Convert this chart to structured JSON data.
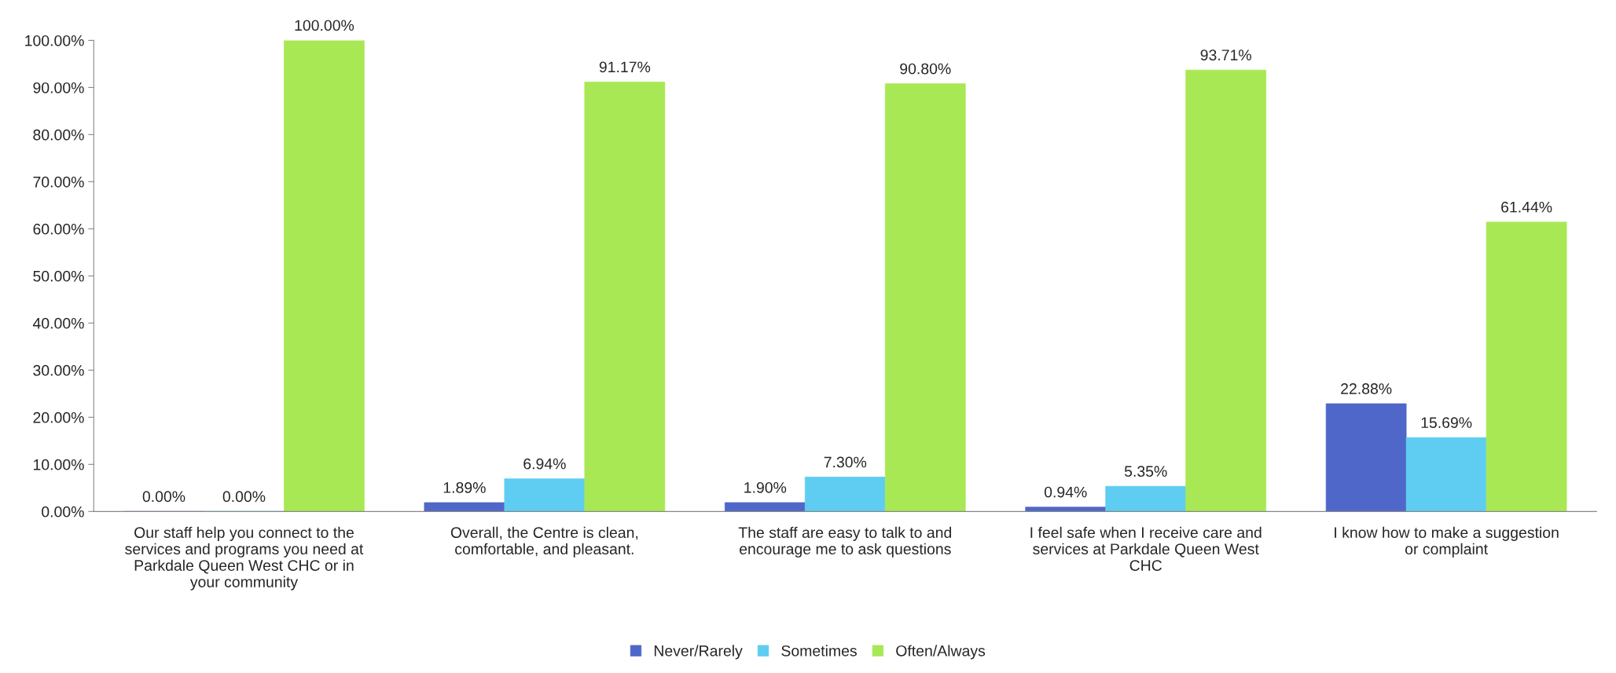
{
  "chart_data": {
    "type": "bar",
    "categories": [
      "Our staff help you connect to the\nservices and programs you need at\nParkdale Queen West CHC or in\nyour community",
      "Overall, the Centre is clean,\ncomfortable, and pleasant.",
      "The staff are easy to talk to and\nencourage me to ask questions",
      "I feel safe when I receive care and\nservices at Parkdale Queen West\nCHC",
      "I know how to make a suggestion\nor complaint"
    ],
    "series": [
      {
        "name": "Never/Rarely",
        "color": "#4f67c9",
        "values": [
          0,
          1.89,
          1.9,
          0.94,
          22.88
        ],
        "value_labels": [
          "0.00%",
          "1.89%",
          "1.90%",
          "0.94%",
          "22.88%"
        ]
      },
      {
        "name": "Sometimes",
        "color": "#5ecdf1",
        "values": [
          0,
          6.94,
          7.3,
          5.35,
          15.69
        ],
        "value_labels": [
          "0.00%",
          "6.94%",
          "7.30%",
          "5.35%",
          "15.69%"
        ]
      },
      {
        "name": "Often/Always",
        "color": "#a9e855",
        "values": [
          100,
          91.17,
          90.8,
          93.71,
          61.44
        ],
        "value_labels": [
          "100.00%",
          "91.17%",
          "90.80%",
          "93.71%",
          "61.44%"
        ]
      }
    ],
    "ylim": [
      0,
      100
    ],
    "yticks": [
      {
        "value": 0,
        "label": "0.00%"
      },
      {
        "value": 10,
        "label": "10.00%"
      },
      {
        "value": 20,
        "label": "20.00%"
      },
      {
        "value": 30,
        "label": "30.00%"
      },
      {
        "value": 40,
        "label": "40.00%"
      },
      {
        "value": 50,
        "label": "50.00%"
      },
      {
        "value": 60,
        "label": "60.00%"
      },
      {
        "value": 70,
        "label": "70.00%"
      },
      {
        "value": 80,
        "label": "80.00%"
      },
      {
        "value": 90,
        "label": "90.00%"
      },
      {
        "value": 100,
        "label": "100.00%"
      }
    ],
    "grid": false,
    "legend": "bottom"
  }
}
